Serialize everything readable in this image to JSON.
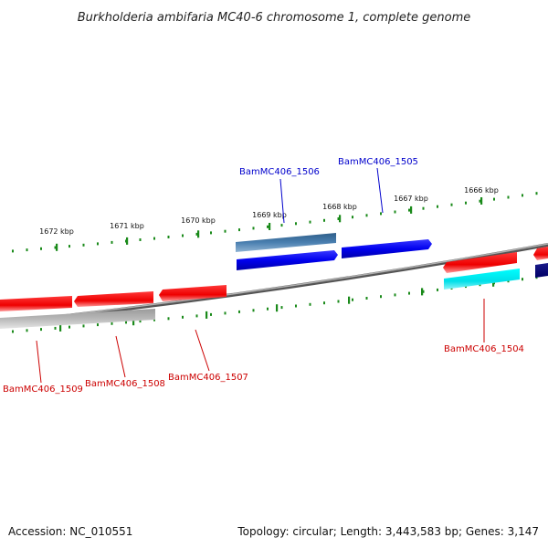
{
  "title": "Burkholderia ambifaria MC40-6 chromosome 1, complete genome",
  "footer": {
    "accession": "Accession: NC_010551",
    "summary": "Topology: circular; Length: 3,443,583 bp; Genes: 3,147"
  },
  "scale_labels": [
    "1672 kbp",
    "1671 kbp",
    "1670 kbp",
    "1669 kbp",
    "1668 kbp",
    "1667 kbp",
    "1666 kbp"
  ],
  "gene_labels": {
    "bam1506": "BamMC406_1506",
    "bam1505": "BamMC406_1505",
    "bam1504": "BamMC406_1504",
    "bam1507": "BamMC406_1507",
    "bam1508": "BamMC406_1508",
    "bam1509": "BamMC406_1509"
  },
  "colors": {
    "forward_gene": "#0000ee",
    "forward_gene_rna": "#4a7fb0",
    "reverse_gene": "#ee0000",
    "reverse_gene_alt": "#00e5ee",
    "pseudo_gene": "#c8c8c8",
    "scale_ticks": "#1a8a1a",
    "backbone": "#808080"
  }
}
